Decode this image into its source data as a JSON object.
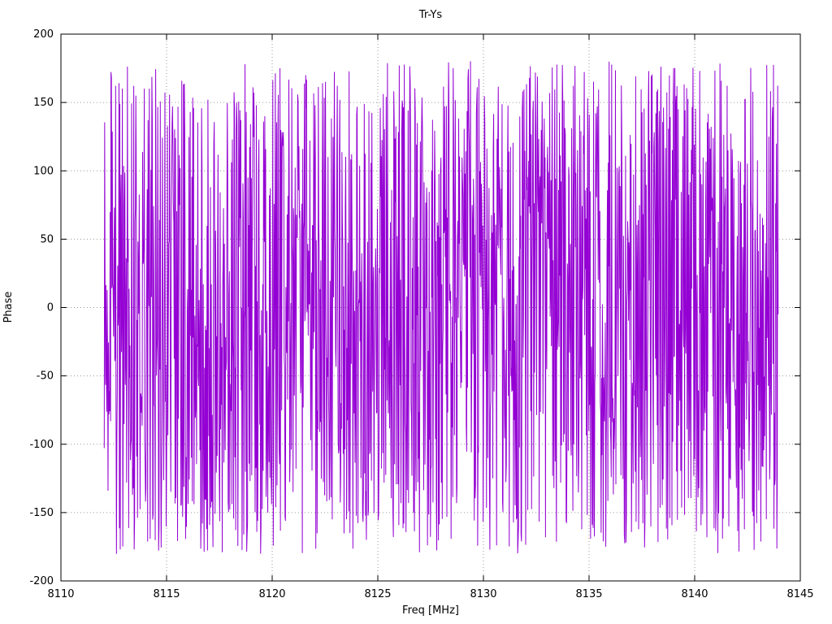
{
  "chart": {
    "title": "Tr-Ys",
    "xlabel": "Freq [MHz]",
    "ylabel": "Phase",
    "xlim": [
      8110,
      8145
    ],
    "ylim": [
      -200,
      200
    ],
    "x_ticks": [
      8110,
      8115,
      8120,
      8125,
      8130,
      8135,
      8140,
      8145
    ],
    "x_tick_labels": [
      "8110",
      "8115",
      "8120",
      "8125",
      "8130",
      "8135",
      "8140",
      "8145"
    ],
    "y_ticks": [
      -200,
      -150,
      -100,
      -50,
      0,
      50,
      100,
      150,
      200
    ],
    "y_tick_labels": [
      "-200",
      "-150",
      "-100",
      "-50",
      "0",
      "50",
      "100",
      "150",
      "200"
    ],
    "colors": {
      "line": "#9400d3",
      "grid": "#9a9a9a",
      "border": "#000000",
      "text": "#000000",
      "background": "#ffffff"
    }
  },
  "chart_data": {
    "type": "line",
    "title": "Tr-Ys",
    "xlabel": "Freq [MHz]",
    "ylabel": "Phase",
    "xlim": [
      8110,
      8145
    ],
    "ylim": [
      -200,
      200
    ],
    "grid": true,
    "legend": "none",
    "series": [
      {
        "name": "Phase",
        "color": "#9400d3",
        "x_start": 8112.05,
        "x_end": 8143.95,
        "n_points": 1600,
        "y_model": "uniform-random-phase-noise-wrapped",
        "y_range": [
          -180,
          180
        ],
        "seed": 123456789
      }
    ]
  }
}
